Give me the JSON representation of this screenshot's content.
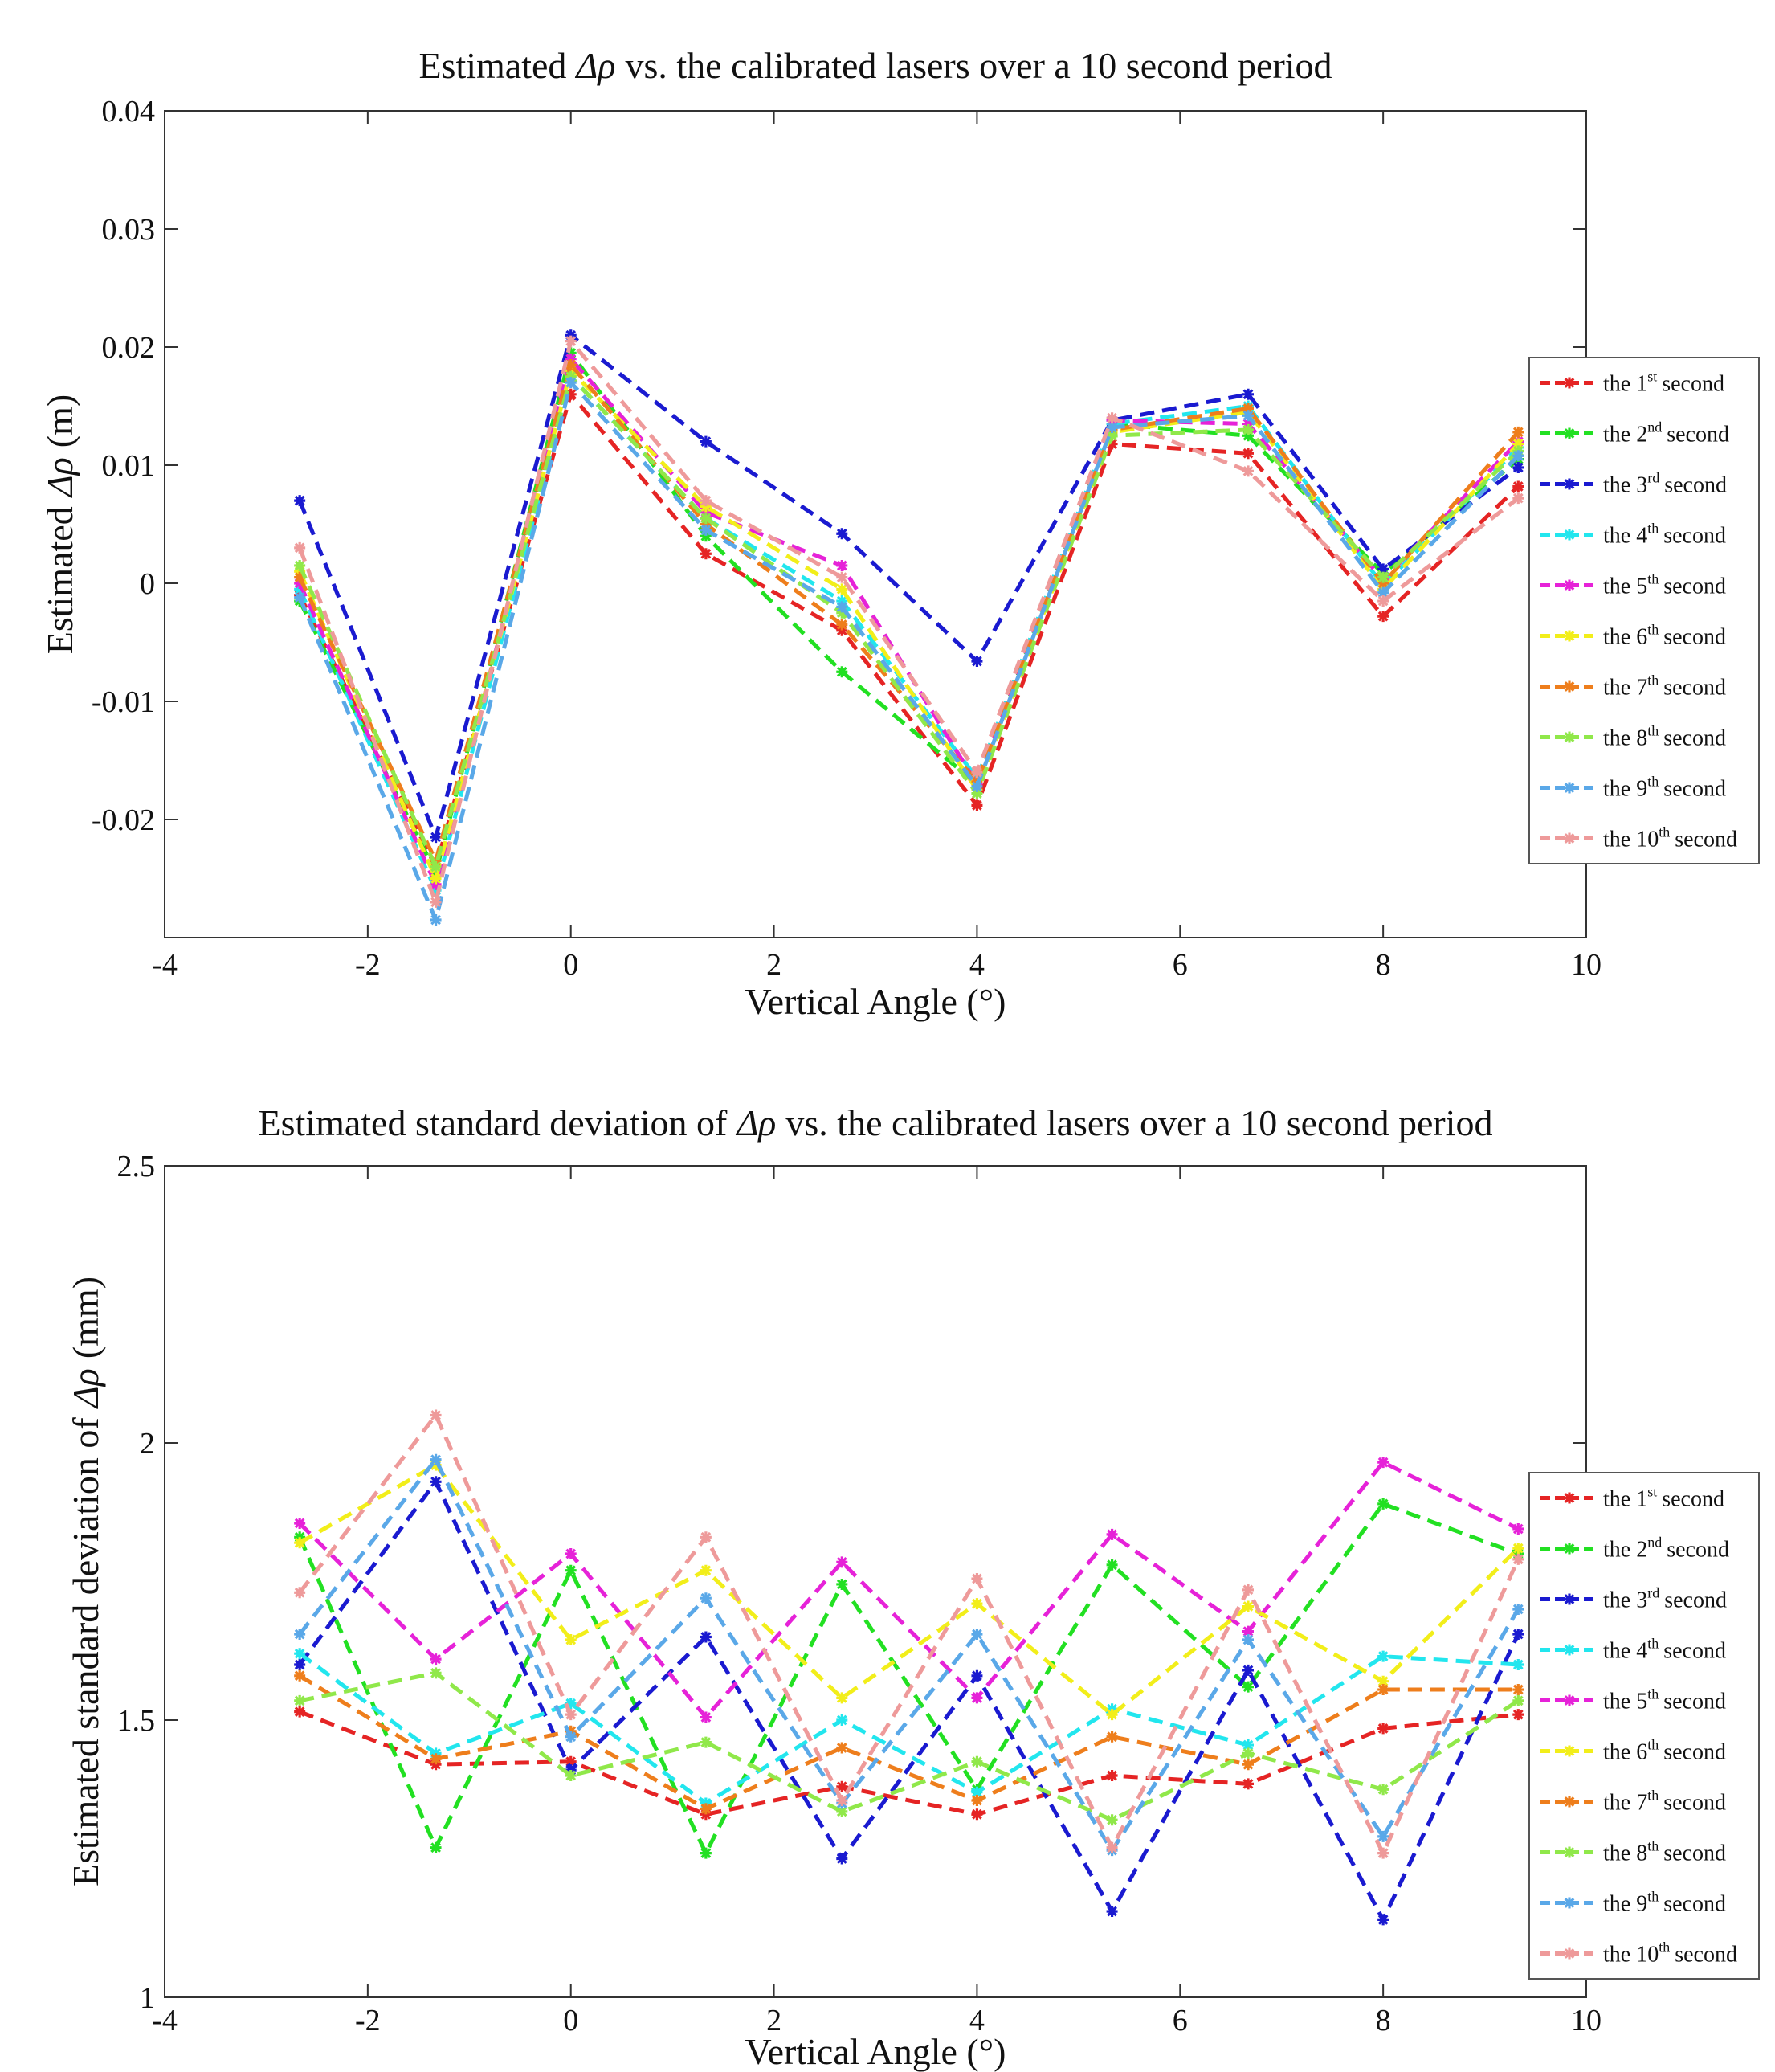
{
  "chart_data": [
    {
      "type": "line",
      "title_prefix": "Estimated",
      "title_symbol": "Δρ",
      "title_suffix": "vs. the calibrated lasers over a 10 second period",
      "xlabel": "Vertical Angle (°)",
      "ylabel_prefix": "Estimated",
      "ylabel_symbol": "Δρ",
      "ylabel_suffix": "(m)",
      "xlim": [
        -4,
        10
      ],
      "ylim": [
        -0.03,
        0.04
      ],
      "xticks": [
        -4,
        -2,
        0,
        2,
        4,
        6,
        8,
        10
      ],
      "xtick_labels": [
        "-4",
        "-2",
        "0",
        "2",
        "4",
        "6",
        "8",
        "10"
      ],
      "yticks": [
        -0.02,
        -0.01,
        0,
        0.01,
        0.02,
        0.03,
        0.04
      ],
      "ytick_labels": [
        "-0.02",
        "-0.01",
        "0",
        "0.01",
        "0.02",
        "0.03",
        "0.04"
      ],
      "legend_position": "right",
      "x": [
        -2.67,
        -1.33,
        0,
        1.33,
        2.67,
        4,
        5.33,
        6.67,
        8,
        9.33
      ],
      "series": [
        {
          "name": "the 1st second",
          "ordinal": "1",
          "suffix": "st",
          "color": "#e52424",
          "values": [
            -0.001,
            -0.024,
            0.016,
            0.0025,
            -0.004,
            -0.0188,
            0.0118,
            0.011,
            -0.0028,
            0.0082
          ]
        },
        {
          "name": "the 2nd second",
          "ordinal": "2",
          "suffix": "nd",
          "color": "#22e022",
          "values": [
            -0.0015,
            -0.0245,
            0.0195,
            0.004,
            -0.0075,
            -0.017,
            0.0135,
            0.0125,
            0.0008,
            0.0105
          ]
        },
        {
          "name": "the 3rd second",
          "ordinal": "3",
          "suffix": "rd",
          "color": "#1a1ad0",
          "values": [
            0.007,
            -0.0215,
            0.021,
            0.012,
            0.0042,
            -0.0066,
            0.0138,
            0.016,
            0.0012,
            0.0098
          ]
        },
        {
          "name": "the 4th second",
          "ordinal": "4",
          "suffix": "th",
          "color": "#22e6ee",
          "values": [
            -0.0005,
            -0.026,
            0.0175,
            0.0055,
            -0.0015,
            -0.0165,
            0.0135,
            0.015,
            -0.0002,
            0.0115
          ]
        },
        {
          "name": "the 5th second",
          "ordinal": "5",
          "suffix": "th",
          "color": "#e622d8",
          "values": [
            0.0,
            -0.0255,
            0.019,
            0.006,
            0.0015,
            -0.017,
            0.0138,
            0.0135,
            0.0003,
            0.012
          ]
        },
        {
          "name": "the 6th second",
          "ordinal": "6",
          "suffix": "th",
          "color": "#f2ee1a",
          "values": [
            0.001,
            -0.025,
            0.018,
            0.0065,
            -0.0005,
            -0.0175,
            0.0128,
            0.0145,
            -0.0005,
            0.0118
          ]
        },
        {
          "name": "the 7th second",
          "ordinal": "7",
          "suffix": "th",
          "color": "#ee7e1c",
          "values": [
            0.0005,
            -0.0235,
            0.0185,
            0.005,
            -0.0035,
            -0.0168,
            0.013,
            0.0148,
            0.0,
            0.0128
          ]
        },
        {
          "name": "the 8th second",
          "ordinal": "8",
          "suffix": "th",
          "color": "#90e84a",
          "values": [
            0.0015,
            -0.024,
            0.0175,
            0.0055,
            -0.0025,
            -0.0178,
            0.0125,
            0.013,
            0.0005,
            0.0112
          ]
        },
        {
          "name": "the 9th second",
          "ordinal": "9",
          "suffix": "th",
          "color": "#5aa8e8",
          "values": [
            -0.0012,
            -0.0285,
            0.017,
            0.0045,
            -0.002,
            -0.0172,
            0.0132,
            0.0142,
            -0.0008,
            0.0108
          ]
        },
        {
          "name": "the 10th second",
          "ordinal": "10",
          "suffix": "th",
          "color": "#ee9a9a",
          "values": [
            0.003,
            -0.027,
            0.0205,
            0.007,
            0.0005,
            -0.016,
            0.014,
            0.0095,
            -0.0015,
            0.0072
          ]
        }
      ]
    },
    {
      "type": "line",
      "title_prefix": "Estimated standard deviation of",
      "title_symbol": "Δρ",
      "title_suffix": "vs. the calibrated lasers over a 10 second period",
      "xlabel": "Vertical Angle (°)",
      "ylabel_prefix": "Estimated standard deviation of",
      "ylabel_symbol": "Δρ",
      "ylabel_suffix": "(mm)",
      "xlim": [
        -4,
        10
      ],
      "ylim": [
        1,
        2.5
      ],
      "xticks": [
        -4,
        -2,
        0,
        2,
        4,
        6,
        8,
        10
      ],
      "xtick_labels": [
        "-4",
        "-2",
        "0",
        "2",
        "4",
        "6",
        "8",
        "10"
      ],
      "yticks": [
        1,
        1.5,
        2,
        2.5
      ],
      "ytick_labels": [
        "1",
        "1.5",
        "2",
        "2.5"
      ],
      "legend_position": "right",
      "x": [
        -2.67,
        -1.33,
        0,
        1.33,
        2.67,
        4,
        5.33,
        6.67,
        8,
        9.33
      ],
      "series": [
        {
          "name": "the 1st second",
          "ordinal": "1",
          "suffix": "st",
          "color": "#e52424",
          "values": [
            1.515,
            1.42,
            1.425,
            1.33,
            1.38,
            1.33,
            1.4,
            1.385,
            1.485,
            1.51
          ]
        },
        {
          "name": "the 2nd second",
          "ordinal": "2",
          "suffix": "nd",
          "color": "#22e022",
          "values": [
            1.83,
            1.27,
            1.77,
            1.26,
            1.745,
            1.375,
            1.78,
            1.56,
            1.89,
            1.8
          ]
        },
        {
          "name": "the 3rd second",
          "ordinal": "3",
          "suffix": "rd",
          "color": "#1a1ad0",
          "values": [
            1.6,
            1.93,
            1.41,
            1.65,
            1.25,
            1.58,
            1.155,
            1.59,
            1.14,
            1.655
          ]
        },
        {
          "name": "the 4th second",
          "ordinal": "4",
          "suffix": "th",
          "color": "#22e6ee",
          "values": [
            1.62,
            1.44,
            1.53,
            1.35,
            1.5,
            1.37,
            1.52,
            1.455,
            1.615,
            1.6
          ]
        },
        {
          "name": "the 5th second",
          "ordinal": "5",
          "suffix": "th",
          "color": "#e622d8",
          "values": [
            1.855,
            1.61,
            1.8,
            1.505,
            1.785,
            1.54,
            1.835,
            1.66,
            1.965,
            1.845
          ]
        },
        {
          "name": "the 6th second",
          "ordinal": "6",
          "suffix": "th",
          "color": "#f2ee1a",
          "values": [
            1.82,
            1.96,
            1.645,
            1.77,
            1.54,
            1.71,
            1.51,
            1.705,
            1.57,
            1.81
          ]
        },
        {
          "name": "the 7th second",
          "ordinal": "7",
          "suffix": "th",
          "color": "#ee7e1c",
          "values": [
            1.58,
            1.43,
            1.48,
            1.34,
            1.45,
            1.355,
            1.47,
            1.42,
            1.555,
            1.555
          ]
        },
        {
          "name": "the 8th second",
          "ordinal": "8",
          "suffix": "th",
          "color": "#90e84a",
          "values": [
            1.535,
            1.585,
            1.4,
            1.46,
            1.335,
            1.425,
            1.32,
            1.44,
            1.375,
            1.535
          ]
        },
        {
          "name": "the 9th second",
          "ordinal": "9",
          "suffix": "th",
          "color": "#5aa8e8",
          "values": [
            1.655,
            1.97,
            1.47,
            1.72,
            1.35,
            1.655,
            1.265,
            1.645,
            1.29,
            1.7
          ]
        },
        {
          "name": "the 10th second",
          "ordinal": "10",
          "suffix": "th",
          "color": "#ee9a9a",
          "values": [
            1.73,
            2.05,
            1.51,
            1.83,
            1.355,
            1.755,
            1.27,
            1.735,
            1.26,
            1.79
          ]
        }
      ]
    }
  ]
}
